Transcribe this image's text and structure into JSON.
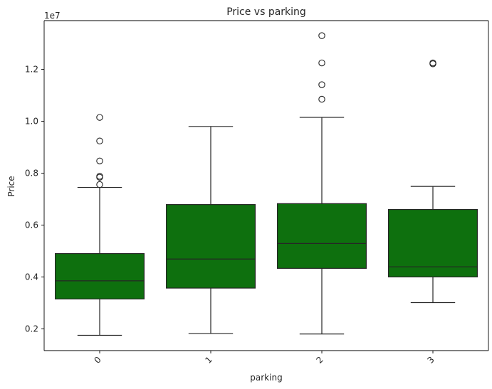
{
  "chart_data": {
    "type": "box",
    "title": "Price vs parking",
    "xlabel": "parking",
    "ylabel": "Price",
    "offset_label": "1e7",
    "ylim": [
      1160000,
      13880000
    ],
    "yticks": [
      0.2,
      0.4,
      0.6,
      0.8,
      1.0,
      1.2
    ],
    "ytick_scale": 10000000,
    "ytick_labels": [
      "0.2",
      "0.4",
      "0.6",
      "0.8",
      "1.0",
      "1.2"
    ],
    "grid": false,
    "legend": "none",
    "colors": {
      "box_fill": "#0e700e",
      "line": "#262626",
      "axes": "#000000"
    },
    "categories": [
      "0",
      "1",
      "2",
      "3"
    ],
    "boxes": [
      {
        "category": "0",
        "whisker_low": 1750000,
        "q1": 3150000,
        "median": 3850000,
        "q3": 4900000,
        "whisker_high": 7450000,
        "outliers": [
          10150000,
          9240000,
          8470000,
          7880000,
          7840000,
          7560000
        ]
      },
      {
        "category": "1",
        "whisker_low": 1820000,
        "q1": 3570000,
        "median": 4690000,
        "q3": 6790000,
        "whisker_high": 9800000,
        "outliers": []
      },
      {
        "category": "2",
        "whisker_low": 1800000,
        "q1": 4330000,
        "median": 5290000,
        "q3": 6825000,
        "whisker_high": 10150000,
        "outliers": [
          13300000,
          12250000,
          11410000,
          10850000
        ]
      },
      {
        "category": "3",
        "whisker_low": 3010000,
        "q1": 4000000,
        "median": 4390000,
        "q3": 6600000,
        "whisker_high": 7490000,
        "outliers": [
          12250000,
          12215000
        ]
      }
    ]
  }
}
